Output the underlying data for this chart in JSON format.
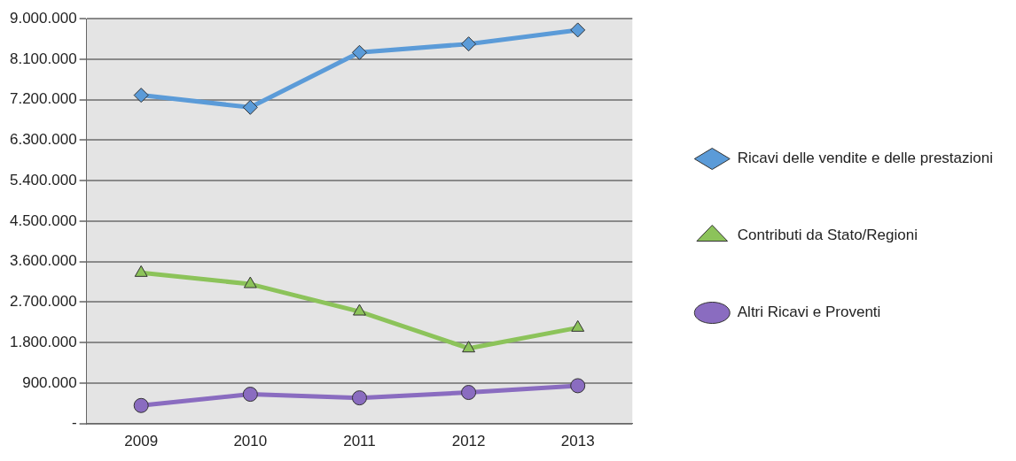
{
  "chart_data": {
    "type": "line",
    "categories": [
      "2009",
      "2010",
      "2011",
      "2012",
      "2013"
    ],
    "series": [
      {
        "name": "Ricavi delle vendite e delle prestazioni",
        "color": "#5b9bd8",
        "marker": "diamond",
        "values": [
          7300000,
          7030000,
          8250000,
          8440000,
          8750000
        ]
      },
      {
        "name": "Contributi da Stato/Regioni",
        "color": "#8cc35a",
        "marker": "triangle",
        "values": [
          3350000,
          3100000,
          2490000,
          1670000,
          2130000
        ]
      },
      {
        "name": "Altri Ricavi e Proventi",
        "color": "#8a6cc0",
        "marker": "circle",
        "values": [
          400000,
          650000,
          570000,
          690000,
          840000
        ]
      }
    ],
    "ylim": [
      0,
      9000000
    ],
    "yticks": [
      {
        "value": 0,
        "label": "-"
      },
      {
        "value": 900000,
        "label": "900.000"
      },
      {
        "value": 1800000,
        "label": "1.800.000"
      },
      {
        "value": 2700000,
        "label": "2.700.000"
      },
      {
        "value": 3600000,
        "label": "3.600.000"
      },
      {
        "value": 4500000,
        "label": "4.500.000"
      },
      {
        "value": 5400000,
        "label": "5.400.000"
      },
      {
        "value": 6300000,
        "label": "6.300.000"
      },
      {
        "value": 7200000,
        "label": "7.200.000"
      },
      {
        "value": 8100000,
        "label": "8.100.000"
      },
      {
        "value": 9000000,
        "label": "9.000.000"
      }
    ],
    "grid": "y",
    "legend": "right",
    "line_style": "solid"
  }
}
